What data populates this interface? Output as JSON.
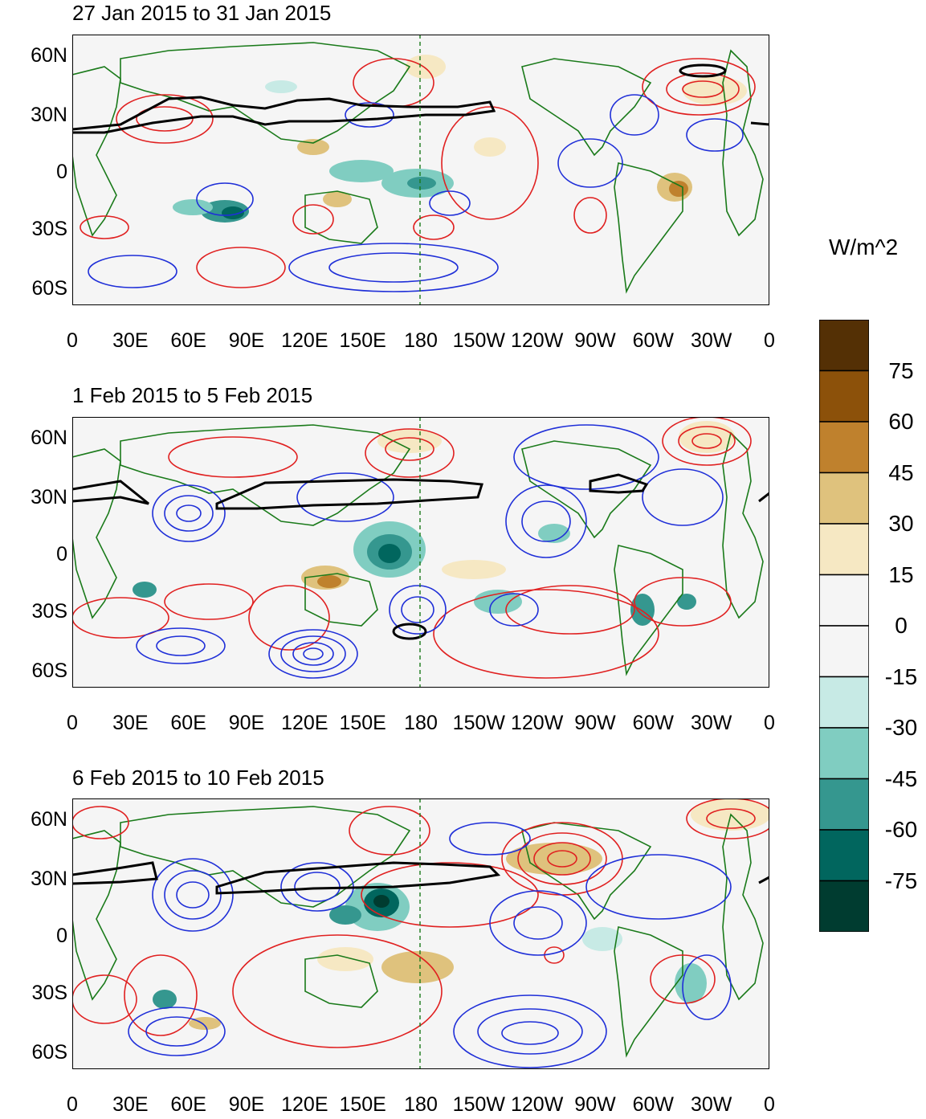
{
  "panels": [
    {
      "title": "27 Jan 2015 to 31 Jan 2015"
    },
    {
      "title": "1 Feb 2015 to 5 Feb 2015"
    },
    {
      "title": "6 Feb 2015 to 10 Feb 2015"
    }
  ],
  "lat_labels": [
    "60N",
    "30N",
    "0",
    "30S",
    "60S"
  ],
  "lon_labels": [
    "0",
    "30E",
    "60E",
    "90E",
    "120E",
    "150E",
    "180",
    "150W",
    "120W",
    "90W",
    "60W",
    "30W",
    "0"
  ],
  "colorbar": {
    "title": "W/m^2",
    "labels": [
      "75",
      "60",
      "45",
      "30",
      "15",
      "0",
      "-15",
      "-30",
      "-45",
      "-60",
      "-75"
    ],
    "colors": [
      "#543005",
      "#8c510a",
      "#bf812d",
      "#dfc27d",
      "#f6e8c3",
      "#f5f5f5",
      "#f5f5f5",
      "#c7eae5",
      "#80cdc1",
      "#35978f",
      "#01665e",
      "#003c30"
    ]
  },
  "colors": {
    "positive_contour": "#e02020",
    "negative_contour": "#1f2fd8",
    "jet_contour": "#000000",
    "coastline": "#1a7a1a"
  }
}
